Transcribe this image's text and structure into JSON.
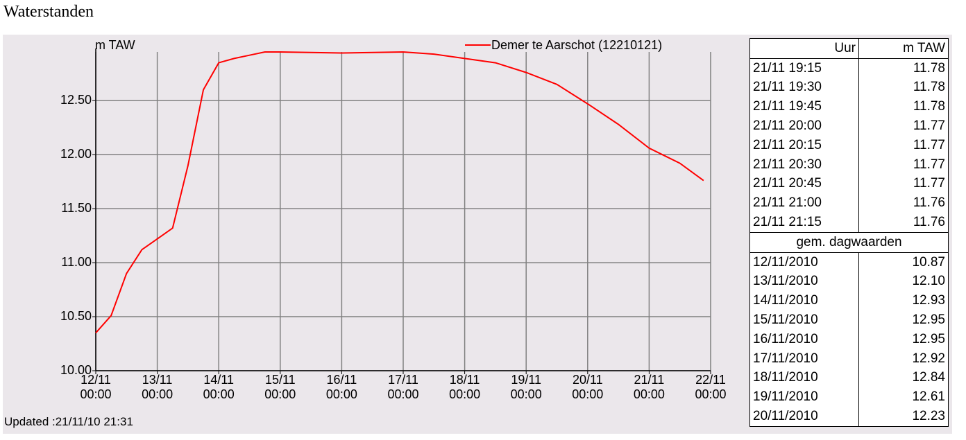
{
  "title": "Waterstanden",
  "chart_data": {
    "type": "line",
    "y_label": "m TAW",
    "xlim": [
      "12/11 00:00",
      "22/11 00:00"
    ],
    "xticks": [
      "12/11 00:00",
      "13/11 00:00",
      "14/11 00:00",
      "15/11 00:00",
      "16/11 00:00",
      "17/11 00:00",
      "18/11 00:00",
      "19/11 00:00",
      "20/11 00:00",
      "21/11 00:00",
      "22/11 00:00"
    ],
    "ylim": [
      10,
      12.95
    ],
    "yticks": [
      {
        "value": 10,
        "label": "10.00"
      },
      {
        "value": 10.5,
        "label": "10.50"
      },
      {
        "value": 11,
        "label": "11.00"
      },
      {
        "value": 11.5,
        "label": "11.50"
      },
      {
        "value": 12,
        "label": "12.00"
      },
      {
        "value": 12.5,
        "label": "12.50"
      }
    ],
    "grid": true,
    "legend": "top-right",
    "x": [
      "12/11 00:00",
      "12/11 06:00",
      "12/11 12:00",
      "12/11 18:00",
      "13/11 00:00",
      "13/11 06:00",
      "13/11 12:00",
      "13/11 18:00",
      "14/11 00:00",
      "14/11 06:00",
      "14/11 12:00",
      "14/11 18:00",
      "15/11 00:00",
      "16/11 00:00",
      "17/11 00:00",
      "17/11 12:00",
      "18/11 00:00",
      "18/11 12:00",
      "19/11 00:00",
      "19/11 12:00",
      "20/11 00:00",
      "20/11 12:00",
      "21/11 00:00",
      "21/11 06:00",
      "21/11 12:00",
      "21/11 21:15"
    ],
    "series": [
      {
        "name": "Demer te Aarschot (12210121)",
        "color": "#ff0000",
        "values": [
          10.35,
          10.51,
          10.9,
          11.12,
          11.22,
          11.32,
          11.9,
          12.6,
          12.85,
          12.89,
          12.92,
          12.95,
          12.95,
          12.94,
          12.95,
          12.93,
          12.89,
          12.85,
          12.76,
          12.65,
          12.47,
          12.28,
          12.06,
          11.99,
          11.92,
          11.76
        ]
      }
    ]
  },
  "updated": "Updated :21/11/10 21:31",
  "table": {
    "header": [
      "Uur",
      "m TAW"
    ],
    "rows": [
      [
        "21/11 19:15",
        "11.78"
      ],
      [
        "21/11 19:30",
        "11.78"
      ],
      [
        "21/11 19:45",
        "11.78"
      ],
      [
        "21/11 20:00",
        "11.77"
      ],
      [
        "21/11 20:15",
        "11.77"
      ],
      [
        "21/11 20:30",
        "11.77"
      ],
      [
        "21/11 20:45",
        "11.77"
      ],
      [
        "21/11 21:00",
        "11.76"
      ],
      [
        "21/11 21:15",
        "11.76"
      ]
    ],
    "daily_header": "gem. dagwaarden",
    "daily_rows": [
      [
        "12/11/2010",
        "10.87"
      ],
      [
        "13/11/2010",
        "12.10"
      ],
      [
        "14/11/2010",
        "12.93"
      ],
      [
        "15/11/2010",
        "12.95"
      ],
      [
        "16/11/2010",
        "12.95"
      ],
      [
        "17/11/2010",
        "12.92"
      ],
      [
        "18/11/2010",
        "12.84"
      ],
      [
        "19/11/2010",
        "12.61"
      ],
      [
        "20/11/2010",
        "12.23"
      ]
    ]
  }
}
